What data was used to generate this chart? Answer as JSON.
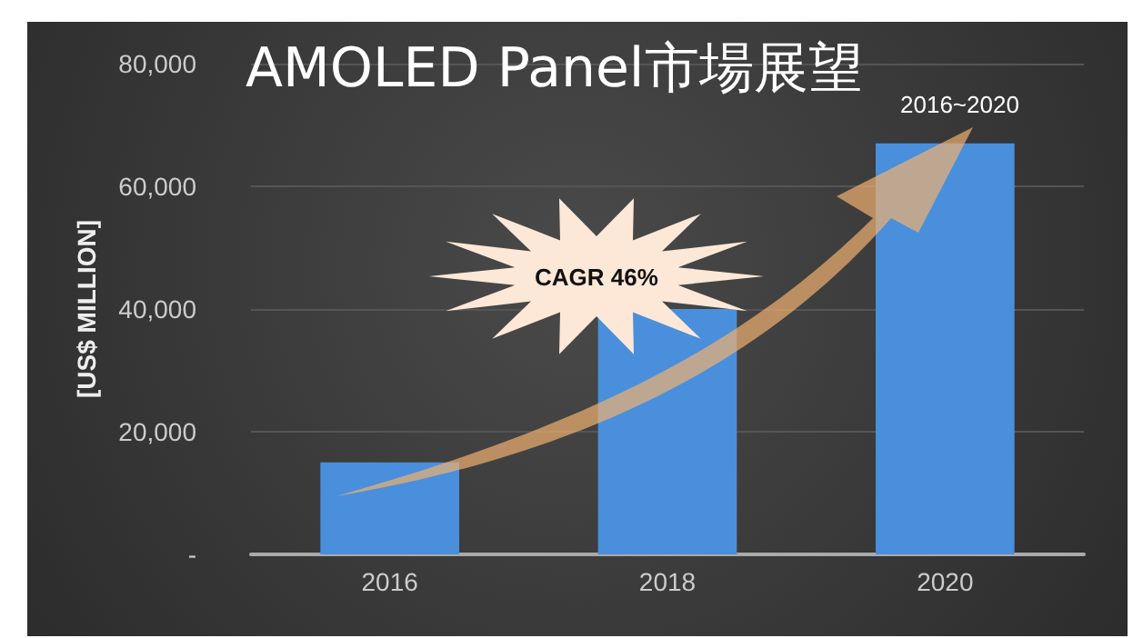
{
  "chart_data": {
    "type": "bar",
    "title": "AMOLED Panel市場展望",
    "subtitle": "2016~2020",
    "ylabel": "[US$ MILLION]",
    "categories": [
      "2016",
      "2018",
      "2020"
    ],
    "values": [
      15000,
      40000,
      67000
    ],
    "color": "#4a8fdb",
    "ylim": [
      0,
      80000
    ],
    "yticks": [
      {
        "value": 0,
        "label": "-"
      },
      {
        "value": 20000,
        "label": "20,000"
      },
      {
        "value": 40000,
        "label": "40,000"
      },
      {
        "value": 60000,
        "label": "60,000"
      },
      {
        "value": 80000,
        "label": "80,000"
      }
    ],
    "grid": "y",
    "annotations": [
      "CAGR 46%"
    ]
  }
}
